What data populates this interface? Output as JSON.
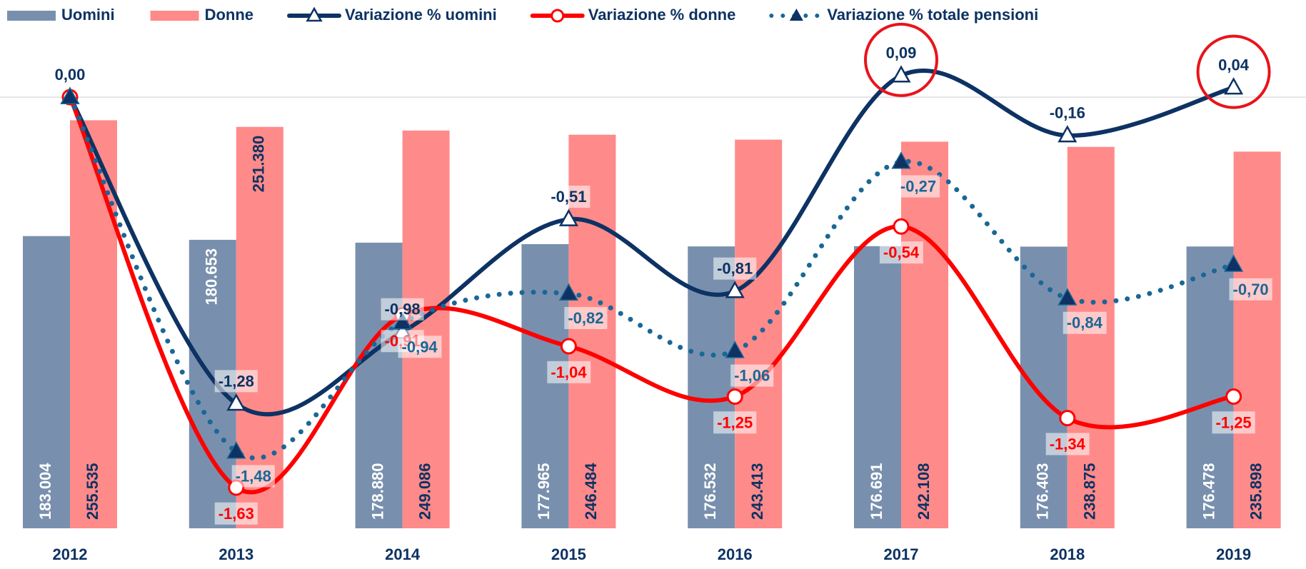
{
  "chart_data": {
    "type": "bar-line",
    "categories": [
      "2012",
      "2013",
      "2014",
      "2015",
      "2016",
      "2017",
      "2018",
      "2019"
    ],
    "ylim": [
      0,
      300000
    ],
    "y2lim": [
      -1.8,
      0.2
    ],
    "series": [
      {
        "name": "Uomini",
        "type": "bar",
        "color": "#7890ae",
        "values": [
          183004,
          180653,
          178880,
          177965,
          176532,
          176691,
          176403,
          176478
        ],
        "value_labels": [
          "183.004",
          "180.653",
          "178.880",
          "177.965",
          "176.532",
          "176.691",
          "176.403",
          "176.478"
        ]
      },
      {
        "name": "Donne",
        "type": "bar",
        "color": "#ff8a8a",
        "values": [
          255535,
          251380,
          249086,
          246484,
          243413,
          242108,
          238875,
          235898
        ],
        "value_labels": [
          "255.535",
          "251.380",
          "249.086",
          "246.484",
          "243.413",
          "242.108",
          "238.875",
          "235.898"
        ]
      },
      {
        "name": "Variazione % uomini",
        "type": "line",
        "axis": "y2",
        "color": "#0d3263",
        "marker": "triangle-open",
        "values": [
          0.0,
          -1.28,
          -0.98,
          -0.51,
          -0.81,
          0.09,
          -0.16,
          0.04
        ],
        "value_labels": [
          "0,00",
          "-1,28",
          "-0,98",
          "-0,51",
          "-0,81",
          "0,09",
          "-0,16",
          "0,04"
        ]
      },
      {
        "name": "Variazione % donne",
        "type": "line",
        "axis": "y2",
        "color": "#ff0000",
        "marker": "circle-open",
        "values": [
          0.0,
          -1.63,
          -0.91,
          -1.04,
          -1.25,
          -0.54,
          -1.34,
          -1.25
        ],
        "value_labels": [
          null,
          "-1,63",
          "-0,91",
          "-1,04",
          "-1,25",
          "-0,54",
          "-1,34",
          "-1,25"
        ]
      },
      {
        "name": "Variazione % totale pensioni",
        "type": "line",
        "axis": "y2",
        "color": "#1a6796",
        "dotted": true,
        "marker": "triangle-filled",
        "values": [
          0.0,
          -1.48,
          -0.94,
          -0.82,
          -1.06,
          -0.27,
          -0.84,
          -0.7
        ],
        "value_labels": [
          null,
          "-1,48",
          "-0,94",
          "-0,82",
          "-1,06",
          "-0,27",
          "-0,84",
          "-0,70"
        ]
      }
    ]
  }
}
